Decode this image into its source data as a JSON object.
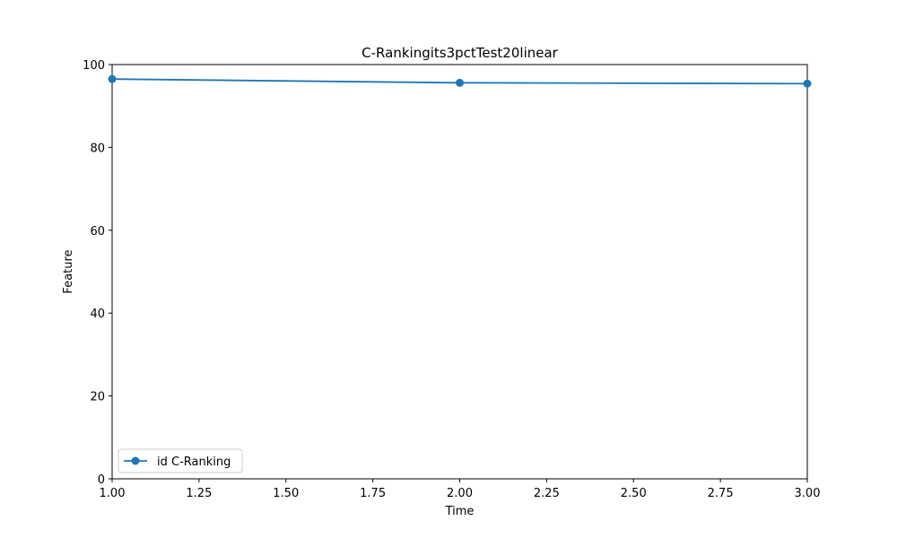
{
  "chart_data": {
    "type": "line",
    "title": "C-Rankingits3pctTest20linear",
    "xlabel": "Time",
    "ylabel": "Feature",
    "xlim": [
      1.0,
      3.0
    ],
    "ylim": [
      0,
      100
    ],
    "x_ticks": [
      1.0,
      1.25,
      1.5,
      1.75,
      2.0,
      2.25,
      2.5,
      2.75,
      3.0
    ],
    "x_tick_labels": [
      "1.00",
      "1.25",
      "1.50",
      "1.75",
      "2.00",
      "2.25",
      "2.50",
      "2.75",
      "3.00"
    ],
    "y_ticks": [
      0,
      20,
      40,
      60,
      80,
      100
    ],
    "y_tick_labels": [
      "0",
      "20",
      "40",
      "60",
      "80",
      "100"
    ],
    "grid": false,
    "legend_position": "lower-left",
    "series": [
      {
        "name": "id C-Ranking",
        "color": "#1f77b4",
        "marker": "circle",
        "x": [
          1,
          2,
          3
        ],
        "y": [
          96.5,
          95.6,
          95.4
        ]
      }
    ]
  }
}
